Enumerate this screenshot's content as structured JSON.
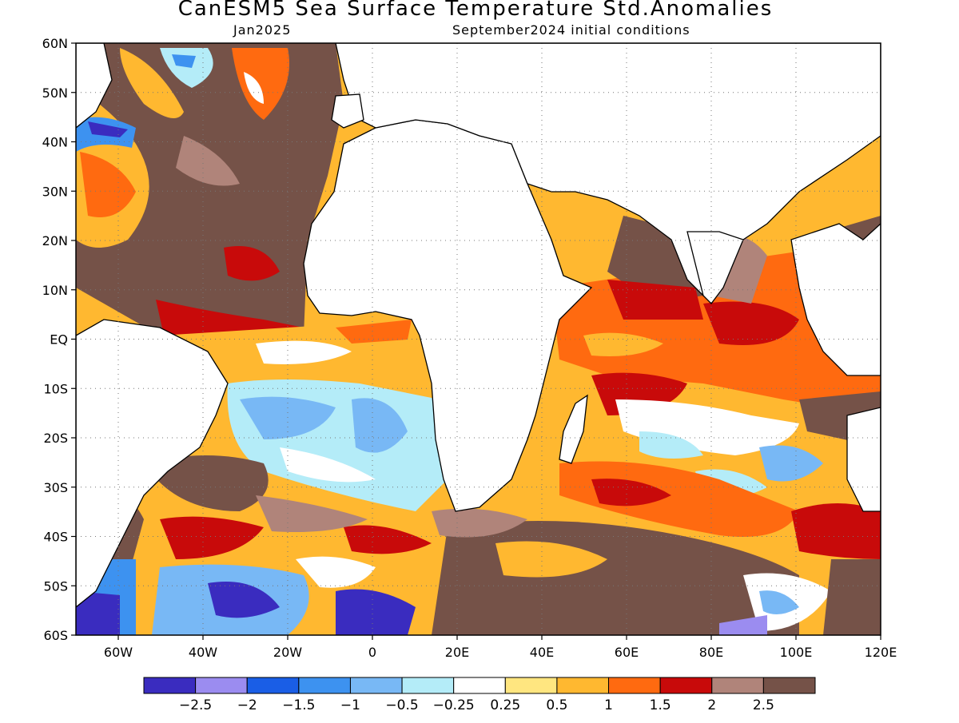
{
  "title": "CanESM5 Sea Surface Temperature Std.Anomalies",
  "subtitle_left": "Jan2025",
  "subtitle_right": "September2024 initial conditions",
  "map": {
    "lon_range": [
      -70,
      120
    ],
    "lat_range": [
      -60,
      60
    ],
    "lat_ticks": [
      "60N",
      "50N",
      "40N",
      "30N",
      "20N",
      "10N",
      "EQ",
      "10S",
      "20S",
      "30S",
      "40S",
      "50S",
      "60S"
    ],
    "lon_ticks": [
      "60W",
      "40W",
      "20W",
      "0",
      "20E",
      "40E",
      "60E",
      "80E",
      "100E",
      "120E"
    ],
    "grid": "dotted"
  },
  "colorbar": {
    "colors": [
      "#3a2cbf",
      "#9b8cf0",
      "#1a5ee6",
      "#3d92f0",
      "#78b8f5",
      "#b4ecf8",
      "#ffffff",
      "#ffe680",
      "#ffb830",
      "#ff6a10",
      "#c80a0a",
      "#b0847a",
      "#755248"
    ],
    "labels": [
      "−2.5",
      "−2",
      "−1.5",
      "−1",
      "−0.5",
      "−0.25",
      "0.25",
      "0.5",
      "1",
      "1.5",
      "2",
      "2.5"
    ]
  },
  "colors": {
    "land": "#ffffff",
    "coast": "#000000"
  }
}
